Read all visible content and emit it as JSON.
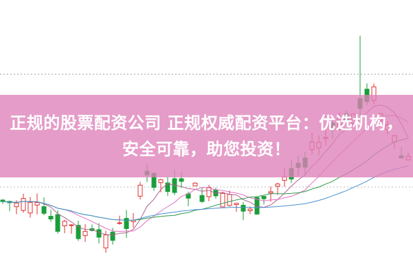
{
  "banner": {
    "text": "正规的股票配资公司 正规权威配资平台：优选机构，安全可靠，助您投资！"
  }
}
